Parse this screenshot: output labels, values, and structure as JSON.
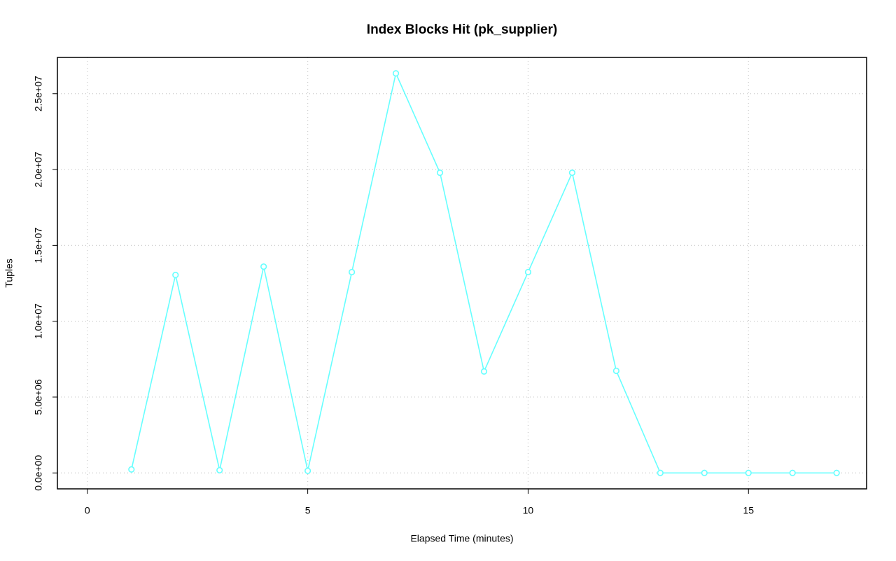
{
  "chart_data": {
    "type": "line",
    "title": "Index Blocks Hit (pk_supplier)",
    "x_label": "Elapsed Time (minutes)",
    "y_label": "Tuples",
    "x": [
      1,
      2,
      3,
      4,
      5,
      6,
      7,
      8,
      9,
      10,
      11,
      12,
      13,
      14,
      15,
      16,
      17
    ],
    "series": [
      {
        "name": "pk_supplier",
        "color": "#66ffff",
        "values": [
          230000,
          13050000,
          180000,
          13600000,
          140000,
          13240000,
          26340000,
          19790000,
          6690000,
          13240000,
          19790000,
          6730000,
          0,
          0,
          0,
          0,
          0
        ]
      }
    ],
    "xlim": [
      -0.68,
      17.68
    ],
    "xticks": [
      0,
      5,
      10,
      15
    ],
    "ylim": [
      -1050000,
      27390000
    ],
    "yticks": [
      {
        "value": 0,
        "label": "0.0e+00"
      },
      {
        "value": 5000000,
        "label": "5.0e+06"
      },
      {
        "value": 10000000,
        "label": "1.0e+07"
      },
      {
        "value": 15000000,
        "label": "1.5e+07"
      },
      {
        "value": 20000000,
        "label": "2.0e+07"
      },
      {
        "value": 25000000,
        "label": "2.5e+07"
      }
    ],
    "grid": true,
    "markers": "open-circle"
  }
}
